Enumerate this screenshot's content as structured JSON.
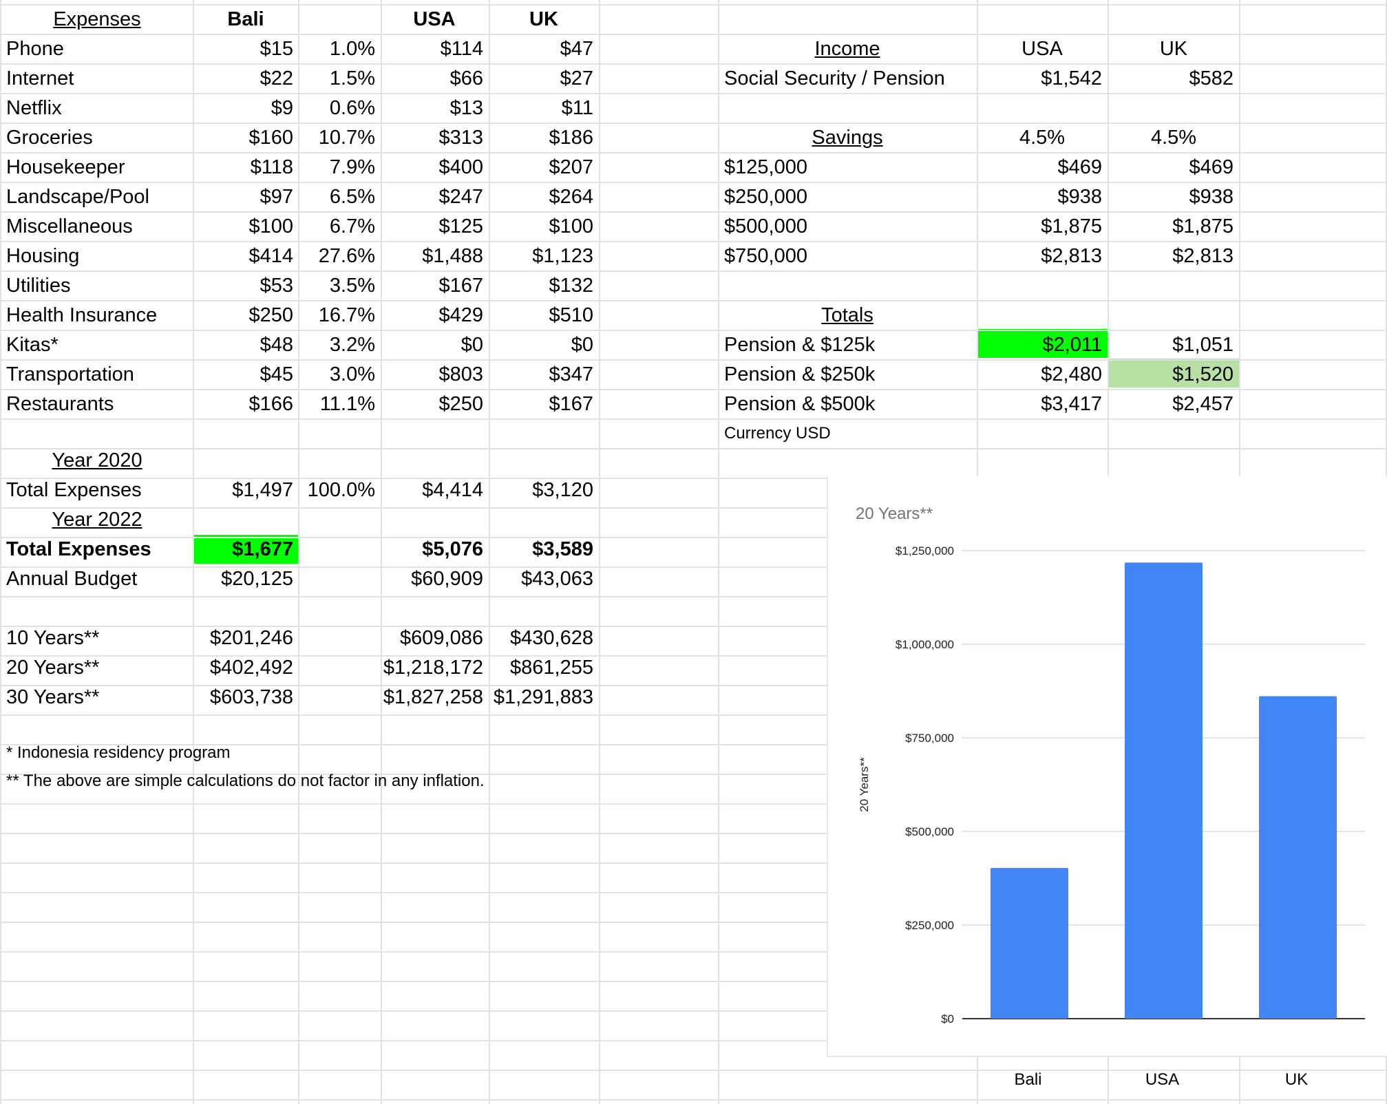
{
  "colors": {
    "highlight_green": "#00ff00",
    "light_green": "#b7e1a4",
    "bar_blue": "#4285f4",
    "grid_line": "#e2e2e2"
  },
  "expenses": {
    "header": {
      "label": "Expenses",
      "bali": "Bali",
      "usa": "USA",
      "uk": "UK"
    },
    "rows": [
      {
        "name": "Phone",
        "bali": "$15",
        "pct": "1.0%",
        "usa": "$114",
        "uk": "$47"
      },
      {
        "name": "Internet",
        "bali": "$22",
        "pct": "1.5%",
        "usa": "$66",
        "uk": "$27"
      },
      {
        "name": "Netflix",
        "bali": "$9",
        "pct": "0.6%",
        "usa": "$13",
        "uk": "$11"
      },
      {
        "name": "Groceries",
        "bali": "$160",
        "pct": "10.7%",
        "usa": "$313",
        "uk": "$186"
      },
      {
        "name": "Housekeeper",
        "bali": "$118",
        "pct": "7.9%",
        "usa": "$400",
        "uk": "$207"
      },
      {
        "name": "Landscape/Pool",
        "bali": "$97",
        "pct": "6.5%",
        "usa": "$247",
        "uk": "$264"
      },
      {
        "name": "Miscellaneous",
        "bali": "$100",
        "pct": "6.7%",
        "usa": "$125",
        "uk": "$100"
      },
      {
        "name": "Housing",
        "bali": "$414",
        "pct": "27.6%",
        "usa": "$1,488",
        "uk": "$1,123"
      },
      {
        "name": "Utilities",
        "bali": "$53",
        "pct": "3.5%",
        "usa": "$167",
        "uk": "$132"
      },
      {
        "name": "Health Insurance",
        "bali": "$250",
        "pct": "16.7%",
        "usa": "$429",
        "uk": "$510"
      },
      {
        "name": "Kitas*",
        "bali": "$48",
        "pct": "3.2%",
        "usa": "$0",
        "uk": "$0"
      },
      {
        "name": "Transportation",
        "bali": "$45",
        "pct": "3.0%",
        "usa": "$803",
        "uk": "$347"
      },
      {
        "name": "Restaurants",
        "bali": "$166",
        "pct": "11.1%",
        "usa": "$250",
        "uk": "$167"
      }
    ]
  },
  "year2020": {
    "title": "Year 2020",
    "total_label": "Total Expenses",
    "bali": "$1,497",
    "pct": "100.0%",
    "usa": "$4,414",
    "uk": "$3,120"
  },
  "year2022": {
    "title": "Year 2022",
    "total_label": "Total Expenses",
    "bali": "$1,677",
    "usa": "$5,076",
    "uk": "$3,589",
    "budget_label": "Annual Budget",
    "budget_bali": "$20,125",
    "budget_usa": "$60,909",
    "budget_uk": "$43,063"
  },
  "projections": [
    {
      "label": "10 Years**",
      "bali": "$201,246",
      "usa": "$609,086",
      "uk": "$430,628"
    },
    {
      "label": "20 Years**",
      "bali": "$402,492",
      "usa": "$1,218,172",
      "uk": "$861,255"
    },
    {
      "label": "30 Years**",
      "bali": "$603,738",
      "usa": "$1,827,258",
      "uk": "$1,291,883"
    }
  ],
  "notes": {
    "note1": "* Indonesia residency program",
    "note2": "** The above are simple calculations do not factor in any inflation."
  },
  "income": {
    "title": "Income",
    "usa": "USA",
    "uk": "UK",
    "pension_label": "Social Security / Pension",
    "pension_usa": "$1,542",
    "pension_uk": "$582"
  },
  "savings": {
    "title": "Savings",
    "rate_usa": "4.5%",
    "rate_uk": "4.5%",
    "rows": [
      {
        "amount": "$125,000",
        "usa": "$469",
        "uk": "$469"
      },
      {
        "amount": "$250,000",
        "usa": "$938",
        "uk": "$938"
      },
      {
        "amount": "$500,000",
        "usa": "$1,875",
        "uk": "$1,875"
      },
      {
        "amount": "$750,000",
        "usa": "$2,813",
        "uk": "$2,813"
      }
    ]
  },
  "totals": {
    "title": "Totals",
    "rows": [
      {
        "label": "Pension & $125k",
        "usa": "$2,011",
        "uk": "$1,051"
      },
      {
        "label": "Pension & $250k",
        "usa": "$2,480",
        "uk": "$1,520"
      },
      {
        "label": "Pension & $500k",
        "usa": "$3,417",
        "uk": "$2,457"
      }
    ],
    "currency_note": "Currency USD"
  },
  "chart_data": {
    "type": "bar",
    "title": "20 Years**",
    "ylabel": "20 Years**",
    "xlabel": "",
    "categories": [
      "Bali",
      "USA",
      "UK"
    ],
    "values": [
      402492,
      1218172,
      861255
    ],
    "ylim": [
      0,
      1250000
    ],
    "yticks": [
      0,
      250000,
      500000,
      750000,
      1000000,
      1250000
    ],
    "ytick_labels": [
      "$0",
      "$250,000",
      "$500,000",
      "$750,000",
      "$1,000,000",
      "$1,250,000"
    ],
    "grid": true,
    "legend": "none"
  }
}
